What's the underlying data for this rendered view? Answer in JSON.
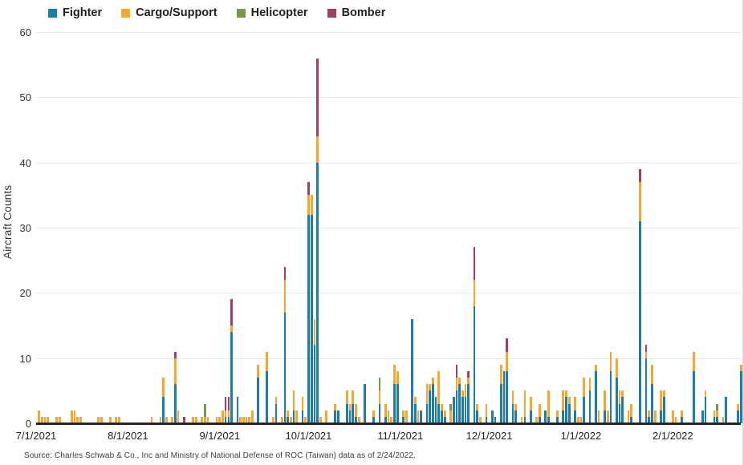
{
  "source": "Source: Charles Schwab & Co., Inc and Ministry of National Defense of ROC (Taiwan) data as of 2/24/2022.",
  "legend": [
    {
      "label": "Fighter",
      "color": "#1b7ea8"
    },
    {
      "label": "Cargo/Support",
      "color": "#f7a72b"
    },
    {
      "label": "Helicopter",
      "color": "#769a47"
    },
    {
      "label": "Bomber",
      "color": "#a23e63"
    }
  ],
  "y_axis": {
    "title": "Aircraft Counts",
    "ticks": [
      0,
      10,
      20,
      30,
      40,
      50,
      60
    ]
  },
  "x_axis": {
    "labels": [
      {
        "text": "7/1/2021",
        "day": 0
      },
      {
        "text": "8/1/2021",
        "day": 31
      },
      {
        "text": "9/1/2021",
        "day": 62
      },
      {
        "text": "10/1/2021",
        "day": 92
      },
      {
        "text": "11/1/2021",
        "day": 123
      },
      {
        "text": "12/1/2021",
        "day": 153
      },
      {
        "text": "1/1/2022",
        "day": 184
      },
      {
        "text": "2/1/2022",
        "day": 215
      }
    ]
  },
  "chart_data": {
    "type": "bar",
    "stacked": true,
    "title": "",
    "xlabel": "",
    "ylabel": "Aircraft Counts",
    "ylim": [
      0,
      60
    ],
    "grid": true,
    "legend_position": "top",
    "x_unit": "days since 7/1/2021, through 2/24/2022",
    "series_names": [
      "Fighter",
      "Cargo/Support",
      "Helicopter",
      "Bomber"
    ],
    "points_format": "[day, fighter, cargo_support, helicopter, bomber]",
    "points": [
      [
        1,
        0,
        2,
        0,
        0
      ],
      [
        2,
        0,
        1,
        0,
        0
      ],
      [
        3,
        0,
        1,
        0,
        0
      ],
      [
        4,
        0,
        1,
        0,
        0
      ],
      [
        7,
        0,
        1,
        0,
        0
      ],
      [
        8,
        0,
        1,
        0,
        0
      ],
      [
        12,
        0,
        2,
        0,
        0
      ],
      [
        13,
        0,
        2,
        0,
        0
      ],
      [
        14,
        0,
        1,
        0,
        0
      ],
      [
        15,
        0,
        1,
        0,
        0
      ],
      [
        21,
        0,
        1,
        0,
        0
      ],
      [
        22,
        0,
        1,
        0,
        0
      ],
      [
        25,
        0,
        1,
        0,
        0
      ],
      [
        27,
        0,
        1,
        0,
        0
      ],
      [
        28,
        0,
        1,
        0,
        0
      ],
      [
        39,
        0,
        1,
        0,
        0
      ],
      [
        42,
        0,
        1,
        0,
        0
      ],
      [
        43,
        4,
        3,
        0,
        0
      ],
      [
        44,
        0,
        1,
        0,
        0
      ],
      [
        46,
        0,
        1,
        0,
        0
      ],
      [
        47,
        6,
        4,
        0,
        1
      ],
      [
        48,
        0,
        2,
        0,
        0
      ],
      [
        50,
        0,
        0,
        0,
        1
      ],
      [
        53,
        0,
        1,
        0,
        0
      ],
      [
        54,
        0,
        1,
        0,
        0
      ],
      [
        56,
        0,
        1,
        0,
        0
      ],
      [
        57,
        0,
        1,
        2,
        0
      ],
      [
        58,
        0,
        1,
        0,
        0
      ],
      [
        61,
        0,
        1,
        0,
        0
      ],
      [
        62,
        0,
        1,
        0,
        0
      ],
      [
        63,
        0,
        2,
        0,
        0
      ],
      [
        64,
        1,
        1,
        0,
        2
      ],
      [
        65,
        1,
        1,
        0,
        2
      ],
      [
        66,
        14,
        1,
        0,
        4
      ],
      [
        68,
        4,
        0,
        0,
        0
      ],
      [
        69,
        0,
        1,
        0,
        0
      ],
      [
        70,
        0,
        1,
        0,
        0
      ],
      [
        71,
        0,
        1,
        0,
        0
      ],
      [
        72,
        0,
        1,
        0,
        0
      ],
      [
        73,
        0,
        2,
        0,
        0
      ],
      [
        75,
        7,
        2,
        0,
        0
      ],
      [
        78,
        8,
        3,
        0,
        0
      ],
      [
        80,
        0,
        1,
        0,
        0
      ],
      [
        81,
        3,
        1,
        0,
        0
      ],
      [
        83,
        0,
        1,
        0,
        0
      ],
      [
        84,
        17,
        5,
        0,
        2
      ],
      [
        85,
        1,
        1,
        0,
        0
      ],
      [
        86,
        0,
        1,
        0,
        0
      ],
      [
        87,
        2,
        3,
        0,
        0
      ],
      [
        88,
        0,
        2,
        0,
        0
      ],
      [
        90,
        2,
        2,
        0,
        0
      ],
      [
        91,
        0,
        1,
        0,
        0
      ],
      [
        92,
        32,
        3,
        0,
        2
      ],
      [
        93,
        32,
        3,
        0,
        0
      ],
      [
        94,
        12,
        4,
        0,
        0
      ],
      [
        95,
        40,
        4,
        0,
        12
      ],
      [
        96,
        0,
        1,
        0,
        0
      ],
      [
        98,
        0,
        2,
        0,
        0
      ],
      [
        101,
        2,
        1,
        0,
        0
      ],
      [
        102,
        2,
        0,
        0,
        0
      ],
      [
        105,
        3,
        2,
        0,
        0
      ],
      [
        106,
        2,
        1,
        0,
        0
      ],
      [
        107,
        3,
        2,
        0,
        0
      ],
      [
        108,
        1,
        2,
        0,
        0
      ],
      [
        109,
        0,
        1,
        0,
        0
      ],
      [
        111,
        6,
        0,
        0,
        0
      ],
      [
        114,
        1,
        1,
        0,
        0
      ],
      [
        116,
        3,
        2,
        2,
        0
      ],
      [
        118,
        1,
        2,
        0,
        0
      ],
      [
        119,
        0,
        2,
        0,
        0
      ],
      [
        120,
        0,
        1,
        0,
        0
      ],
      [
        121,
        6,
        3,
        0,
        0
      ],
      [
        122,
        6,
        2,
        0,
        0
      ],
      [
        124,
        1,
        1,
        0,
        0
      ],
      [
        125,
        0,
        2,
        0,
        0
      ],
      [
        127,
        16,
        0,
        0,
        0
      ],
      [
        128,
        3,
        1,
        0,
        0
      ],
      [
        129,
        0,
        2,
        0,
        0
      ],
      [
        130,
        2,
        0,
        0,
        0
      ],
      [
        132,
        3,
        3,
        0,
        0
      ],
      [
        133,
        5,
        1,
        0,
        0
      ],
      [
        134,
        6,
        1,
        0,
        0
      ],
      [
        135,
        4,
        0,
        0,
        0
      ],
      [
        136,
        3,
        5,
        0,
        0
      ],
      [
        137,
        2,
        1,
        0,
        0
      ],
      [
        138,
        1,
        1,
        0,
        0
      ],
      [
        140,
        0,
        2,
        1,
        0
      ],
      [
        141,
        4,
        0,
        0,
        0
      ],
      [
        142,
        5,
        2,
        0,
        2
      ],
      [
        143,
        6,
        1,
        0,
        0
      ],
      [
        144,
        4,
        1,
        0,
        0
      ],
      [
        145,
        4,
        2,
        0,
        0
      ],
      [
        146,
        6,
        1,
        0,
        1
      ],
      [
        148,
        18,
        4,
        0,
        5
      ],
      [
        149,
        2,
        1,
        0,
        0
      ],
      [
        150,
        0,
        1,
        0,
        0
      ],
      [
        152,
        1,
        2,
        0,
        0
      ],
      [
        154,
        2,
        0,
        0,
        0
      ],
      [
        155,
        1,
        0,
        0,
        0
      ],
      [
        157,
        6,
        3,
        0,
        0
      ],
      [
        158,
        8,
        0,
        0,
        0
      ],
      [
        159,
        8,
        3,
        0,
        2
      ],
      [
        161,
        3,
        2,
        0,
        0
      ],
      [
        162,
        2,
        1,
        0,
        0
      ],
      [
        164,
        0,
        1,
        0,
        0
      ],
      [
        165,
        1,
        4,
        0,
        0
      ],
      [
        167,
        2,
        2,
        0,
        0
      ],
      [
        169,
        0,
        1,
        0,
        0
      ],
      [
        170,
        1,
        2,
        0,
        0
      ],
      [
        172,
        2,
        0,
        0,
        0
      ],
      [
        173,
        1,
        4,
        0,
        0
      ],
      [
        176,
        1,
        1,
        0,
        0
      ],
      [
        178,
        2,
        3,
        0,
        0
      ],
      [
        179,
        4,
        1,
        0,
        0
      ],
      [
        180,
        3,
        1,
        0,
        0
      ],
      [
        182,
        2,
        2,
        0,
        0
      ],
      [
        183,
        0,
        1,
        0,
        0
      ],
      [
        184,
        0,
        1,
        0,
        0
      ],
      [
        185,
        4,
        3,
        0,
        0
      ],
      [
        187,
        5,
        2,
        0,
        0
      ],
      [
        189,
        8,
        1,
        0,
        0
      ],
      [
        190,
        0,
        2,
        0,
        0
      ],
      [
        192,
        2,
        3,
        0,
        0
      ],
      [
        193,
        0,
        2,
        0,
        0
      ],
      [
        194,
        8,
        3,
        0,
        0
      ],
      [
        196,
        7,
        3,
        0,
        0
      ],
      [
        197,
        3,
        2,
        0,
        0
      ],
      [
        198,
        4,
        1,
        0,
        0
      ],
      [
        200,
        0,
        2,
        0,
        0
      ],
      [
        201,
        1,
        2,
        0,
        0
      ],
      [
        204,
        31,
        6,
        0,
        2
      ],
      [
        206,
        10,
        1,
        0,
        1
      ],
      [
        207,
        1,
        1,
        0,
        0
      ],
      [
        208,
        6,
        3,
        0,
        0
      ],
      [
        209,
        0,
        2,
        0,
        0
      ],
      [
        211,
        2,
        3,
        0,
        0
      ],
      [
        212,
        4,
        1,
        0,
        0
      ],
      [
        215,
        0,
        2,
        0,
        0
      ],
      [
        216,
        0,
        1,
        0,
        0
      ],
      [
        218,
        1,
        1,
        0,
        0
      ],
      [
        222,
        8,
        3,
        0,
        0
      ],
      [
        225,
        2,
        0,
        0,
        0
      ],
      [
        226,
        4,
        1,
        0,
        0
      ],
      [
        229,
        1,
        1,
        0,
        0
      ],
      [
        230,
        1,
        1,
        1,
        0
      ],
      [
        232,
        0,
        1,
        0,
        0
      ],
      [
        233,
        4,
        0,
        0,
        0
      ],
      [
        237,
        2,
        1,
        0,
        0
      ],
      [
        238,
        8,
        1,
        0,
        0
      ]
    ]
  }
}
